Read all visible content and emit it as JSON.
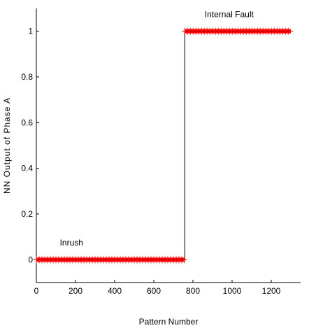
{
  "chart_data": {
    "type": "line",
    "xlabel": "Pattern Number",
    "ylabel": "NN Output of Phase A",
    "xlim": [
      0,
      1350
    ],
    "ylim": [
      -0.1,
      1.1
    ],
    "x_ticks": [
      0,
      200,
      400,
      600,
      800,
      1000,
      1200
    ],
    "y_ticks": [
      0,
      0.2,
      0.4,
      0.6,
      0.8,
      1
    ],
    "x_tick_labels": [
      "0",
      "200",
      "400",
      "600",
      "800",
      "1000",
      "1200"
    ],
    "y_tick_labels": [
      "0",
      "0.2",
      "0.4",
      "0.6",
      "0.8",
      "1"
    ],
    "grid": false,
    "series": [
      {
        "name": "",
        "style": "step-line",
        "color": "#000000",
        "x": [
          0,
          758,
          758,
          1300
        ],
        "y": [
          0,
          0,
          1,
          1
        ]
      },
      {
        "name": "",
        "style": "markers-plus",
        "color": "#ff0000",
        "segments": [
          {
            "x_start": 0,
            "x_end": 758,
            "y": 0
          },
          {
            "x_start": 758,
            "x_end": 1300,
            "y": 1
          }
        ]
      }
    ],
    "annotations": [
      {
        "text": "Inrush",
        "x": 120,
        "y": 0.05
      },
      {
        "text": "Internal Fault",
        "x": 860,
        "y": 1.05
      }
    ]
  }
}
